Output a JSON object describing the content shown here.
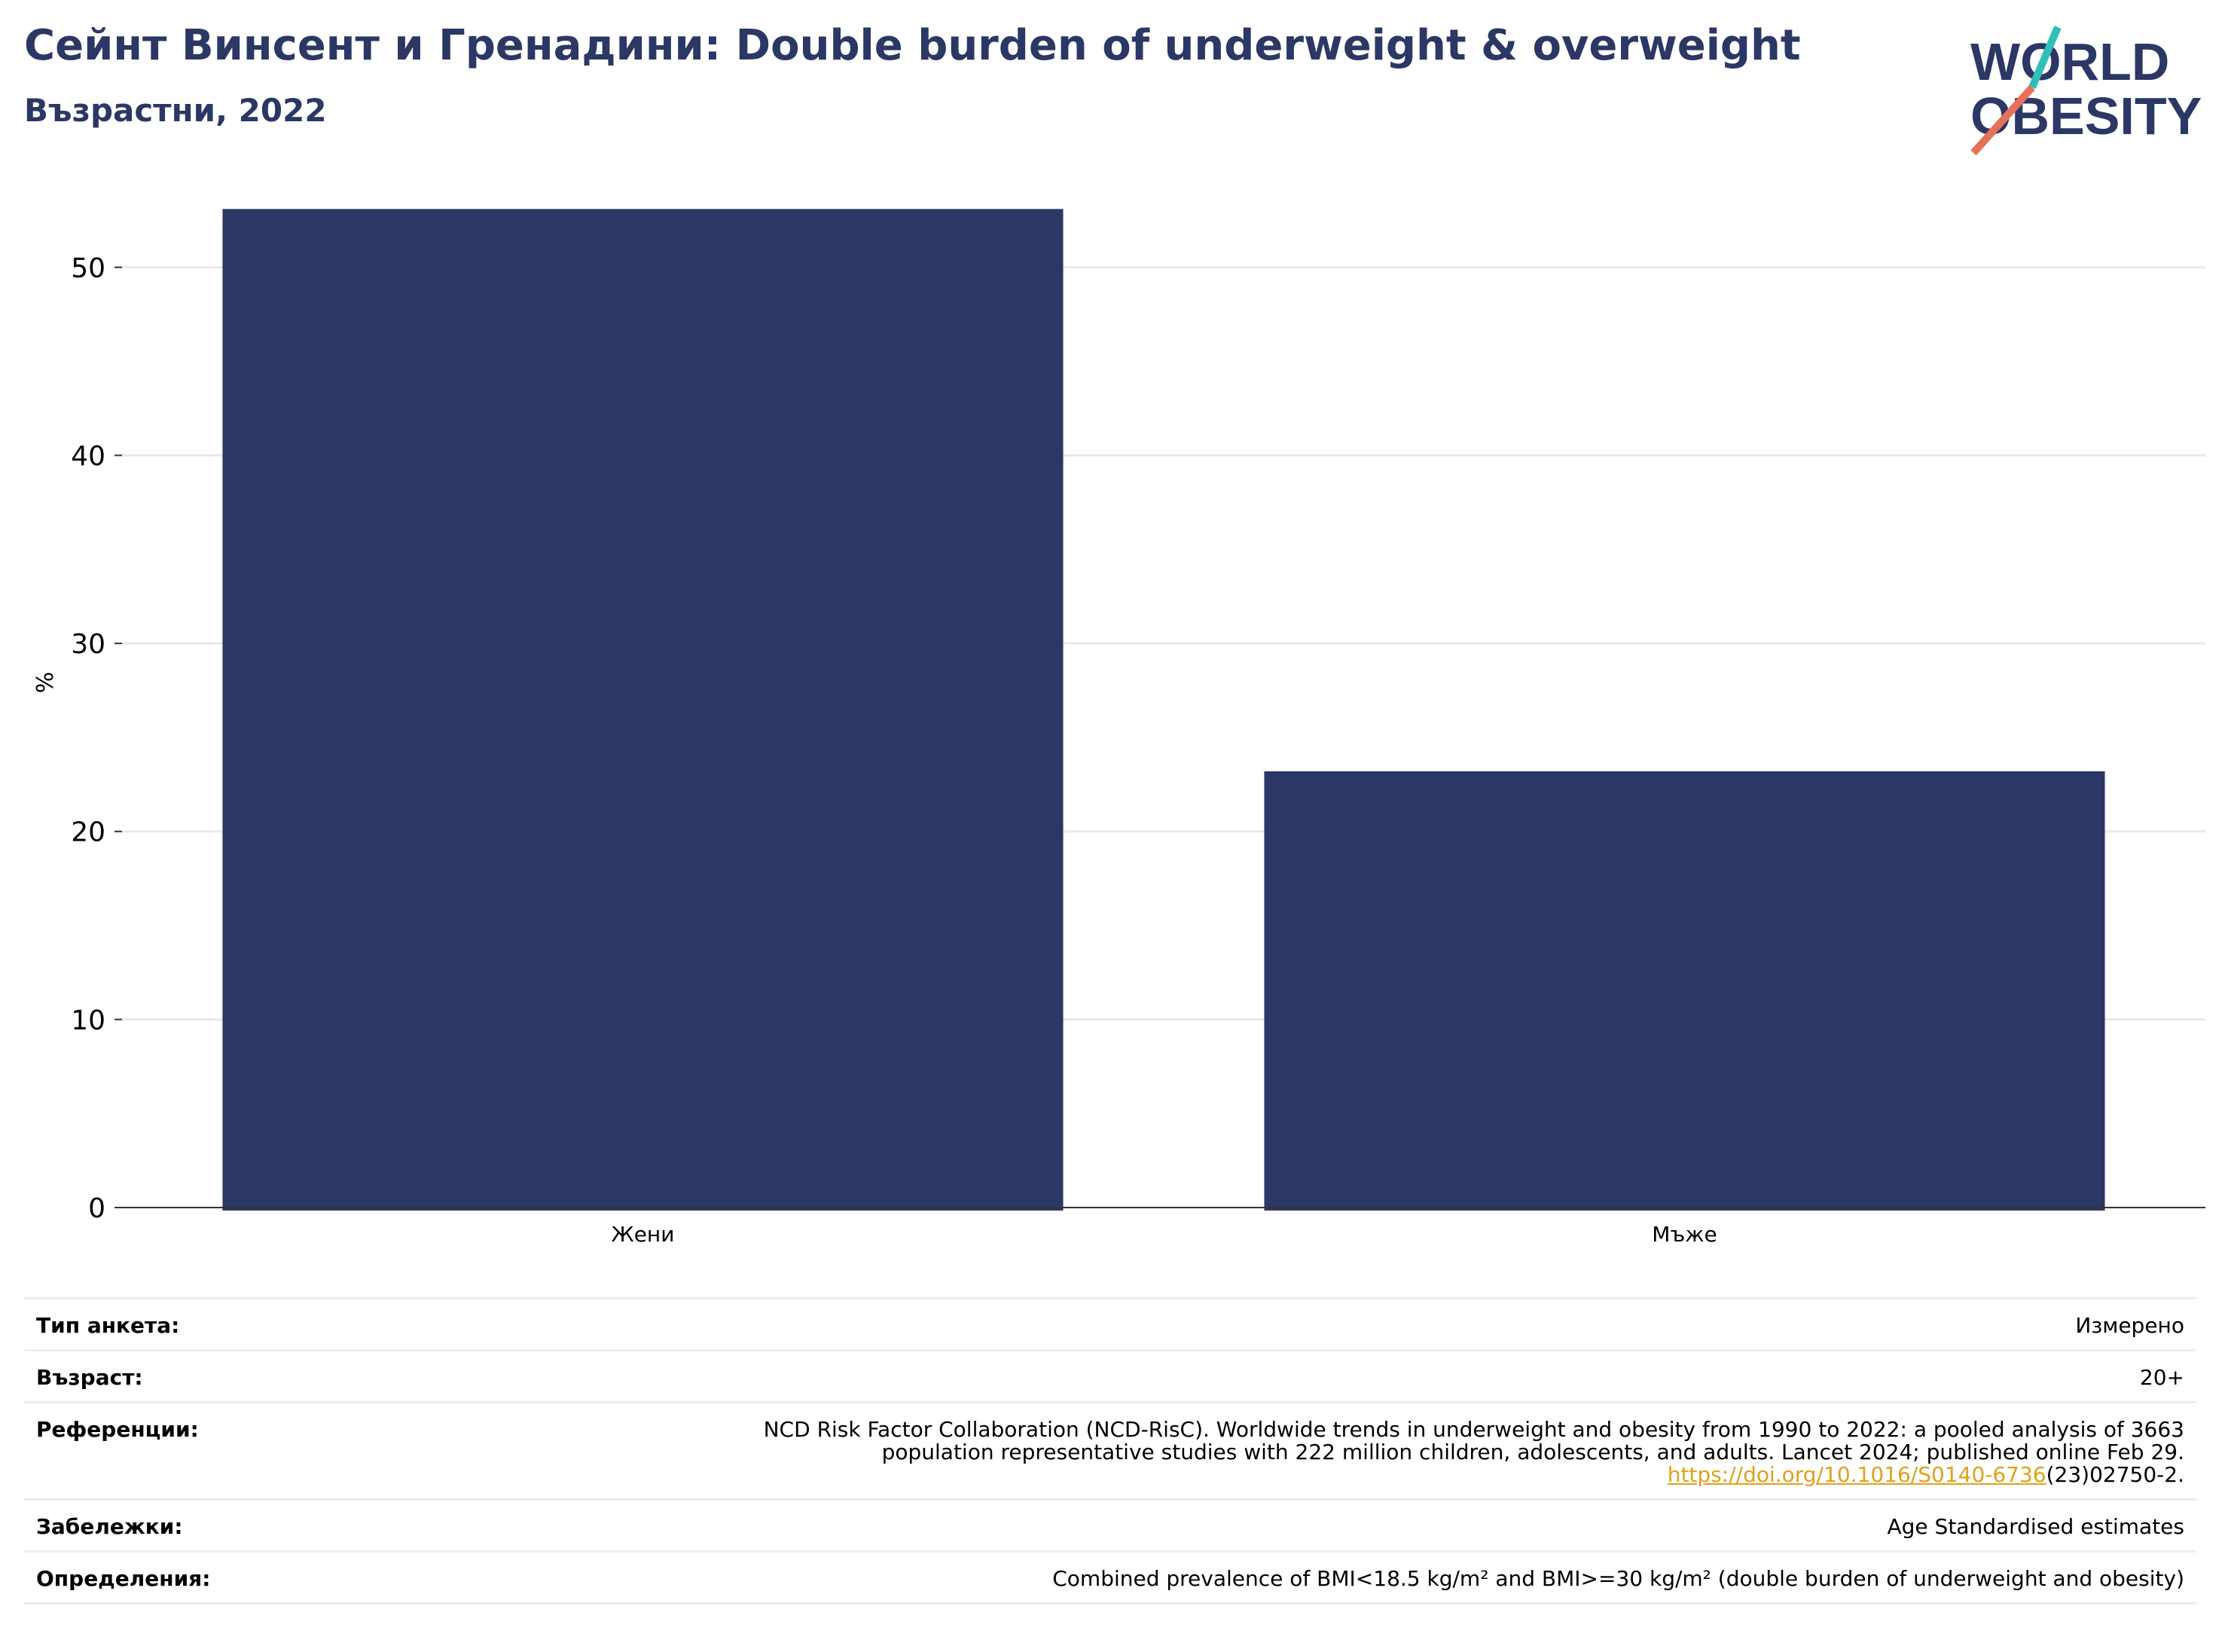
{
  "header": {
    "title": "Сейнт Винсент и Гренадини: Double burden of underweight & overweight",
    "subtitle": "Възрастни, 2022"
  },
  "logo": {
    "line1": "WORLD",
    "line2": "OBESITY",
    "text_color": "#2b3764",
    "slash_teal": "#2ebfb6",
    "slash_coral": "#e8705a"
  },
  "chart_data": {
    "type": "bar",
    "categories": [
      "Жени",
      "Мъже"
    ],
    "values": [
      53.1,
      23.2
    ],
    "ylabel": "%",
    "ylim": [
      0,
      55
    ],
    "yticks": [
      0,
      10,
      20,
      30,
      40,
      50
    ],
    "grid": true,
    "bar_color": "#2b3764"
  },
  "meta": {
    "survey_type": {
      "label": "Тип анкета:",
      "value": "Измерено"
    },
    "age": {
      "label": "Възраст:",
      "value": "20+"
    },
    "references": {
      "label": "Референции:",
      "line1": "NCD Risk Factor Collaboration (NCD-RisC). Worldwide trends in underweight and obesity from 1990 to 2022: a pooled analysis of 3663",
      "line2": "population representative studies with 222 million children, adolescents, and adults. Lancet 2024; published online Feb 29.",
      "link": "https://doi.org/10.1016/S0140-6736",
      "link_suffix": "(23)02750-2."
    },
    "notes": {
      "label": "Забележки:",
      "value": "Age Standardised estimates"
    },
    "definitions": {
      "label": "Определения:",
      "value": "Combined prevalence of BMI<18.5 kg/m² and BMI>=30 kg/m² (double burden of underweight and obesity)"
    }
  }
}
